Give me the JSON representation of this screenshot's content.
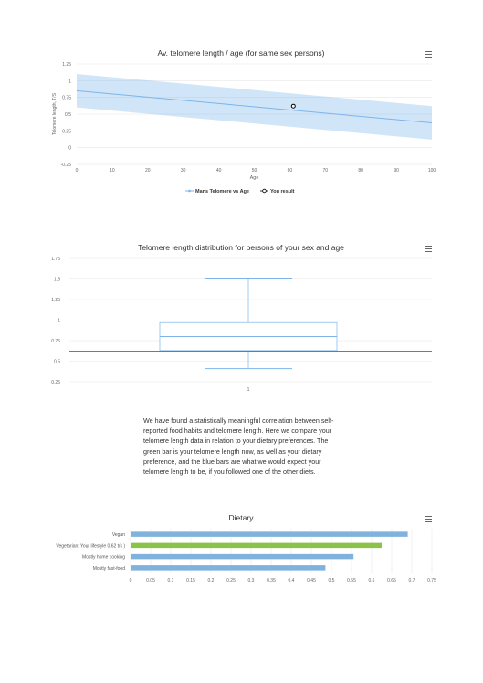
{
  "charts": [
    {
      "id": "telomere-age",
      "type": "line",
      "title": "Av. telomere length / age (for same sex persons)",
      "xlabel": "Age",
      "ylabel": "Telomere length, T/S",
      "xlim": [
        0,
        100
      ],
      "ylim": [
        -0.25,
        1.25
      ],
      "xticks": [
        0,
        10,
        20,
        30,
        40,
        50,
        60,
        70,
        80,
        90,
        100
      ],
      "yticks": [
        -0.25,
        0,
        0.25,
        0.5,
        0.75,
        1,
        1.25
      ],
      "ytick_labels": [
        "-0.25",
        "0",
        "0.25",
        "0.5",
        "0.75",
        "1",
        "1.25"
      ],
      "series": [
        {
          "name": "Mans Telomere vs Age",
          "x": [
            0,
            100
          ],
          "y": [
            0.85,
            0.37
          ],
          "band_upper": [
            1.1,
            0.62
          ],
          "band_lower": [
            0.6,
            0.12
          ],
          "color": "#7cb5ec"
        },
        {
          "name": "You result",
          "x": [
            61
          ],
          "y": [
            0.62
          ],
          "marker": "circle",
          "color": "#000000"
        }
      ],
      "grid": true,
      "legend": "bottom-center"
    },
    {
      "id": "telomere-distribution",
      "type": "boxplot",
      "title": "Telomere length distribution for persons of your sex and age",
      "categories": [
        "1"
      ],
      "ylim": [
        0.25,
        1.75
      ],
      "yticks": [
        0.25,
        0.5,
        0.75,
        1,
        1.25,
        1.5,
        1.75
      ],
      "ytick_labels": [
        "0.25",
        "0.5",
        "0.75",
        "1",
        "1.25",
        "1.5",
        "1.75"
      ],
      "box": {
        "low": 0.41,
        "q1": 0.63,
        "median": 0.8,
        "q3": 0.97,
        "high": 1.5
      },
      "reference_line": 0.62,
      "reference_color": "#e74c3c",
      "box_color": "#7cb5ec",
      "grid": true
    },
    {
      "id": "dietary",
      "type": "bar",
      "orientation": "horizontal",
      "title": "Dietary",
      "categories": [
        "Vegan",
        "Vegetarian: Your lifestyle 0.62 t/s )",
        "Mostly home cooking",
        "Mostly fast-food"
      ],
      "values": [
        0.69,
        0.625,
        0.555,
        0.485
      ],
      "colors": [
        "#7fb2dc",
        "#8bc34a",
        "#7fb2dc",
        "#7fb2dc"
      ],
      "xlim": [
        0,
        0.75
      ],
      "xticks": [
        0,
        0.05,
        0.1,
        0.15,
        0.2,
        0.25,
        0.3,
        0.35,
        0.4,
        0.45,
        0.5,
        0.55,
        0.6,
        0.65,
        0.7,
        0.75
      ],
      "xtick_labels": [
        "0",
        "0.05",
        "0.1",
        "0.15",
        "0.2",
        "0.25",
        "0.3",
        "0.35",
        "0.4",
        "0.45",
        "0.5",
        "0.55",
        "0.6",
        "0.65",
        "0.7",
        "0.75"
      ],
      "grid": true
    }
  ],
  "description": "We have found a statistically meaningful correlation between self-reported food habits and telomere length. Here we compare your telomere length data in relation to your dietary preferences. The green bar is your telomere length now, as well as your dietary preference, and the blue bars are what we would expect your telomere length to be, if you followed one of the other diets.",
  "icons": {
    "chart_menu": "hamburger-menu-icon"
  }
}
